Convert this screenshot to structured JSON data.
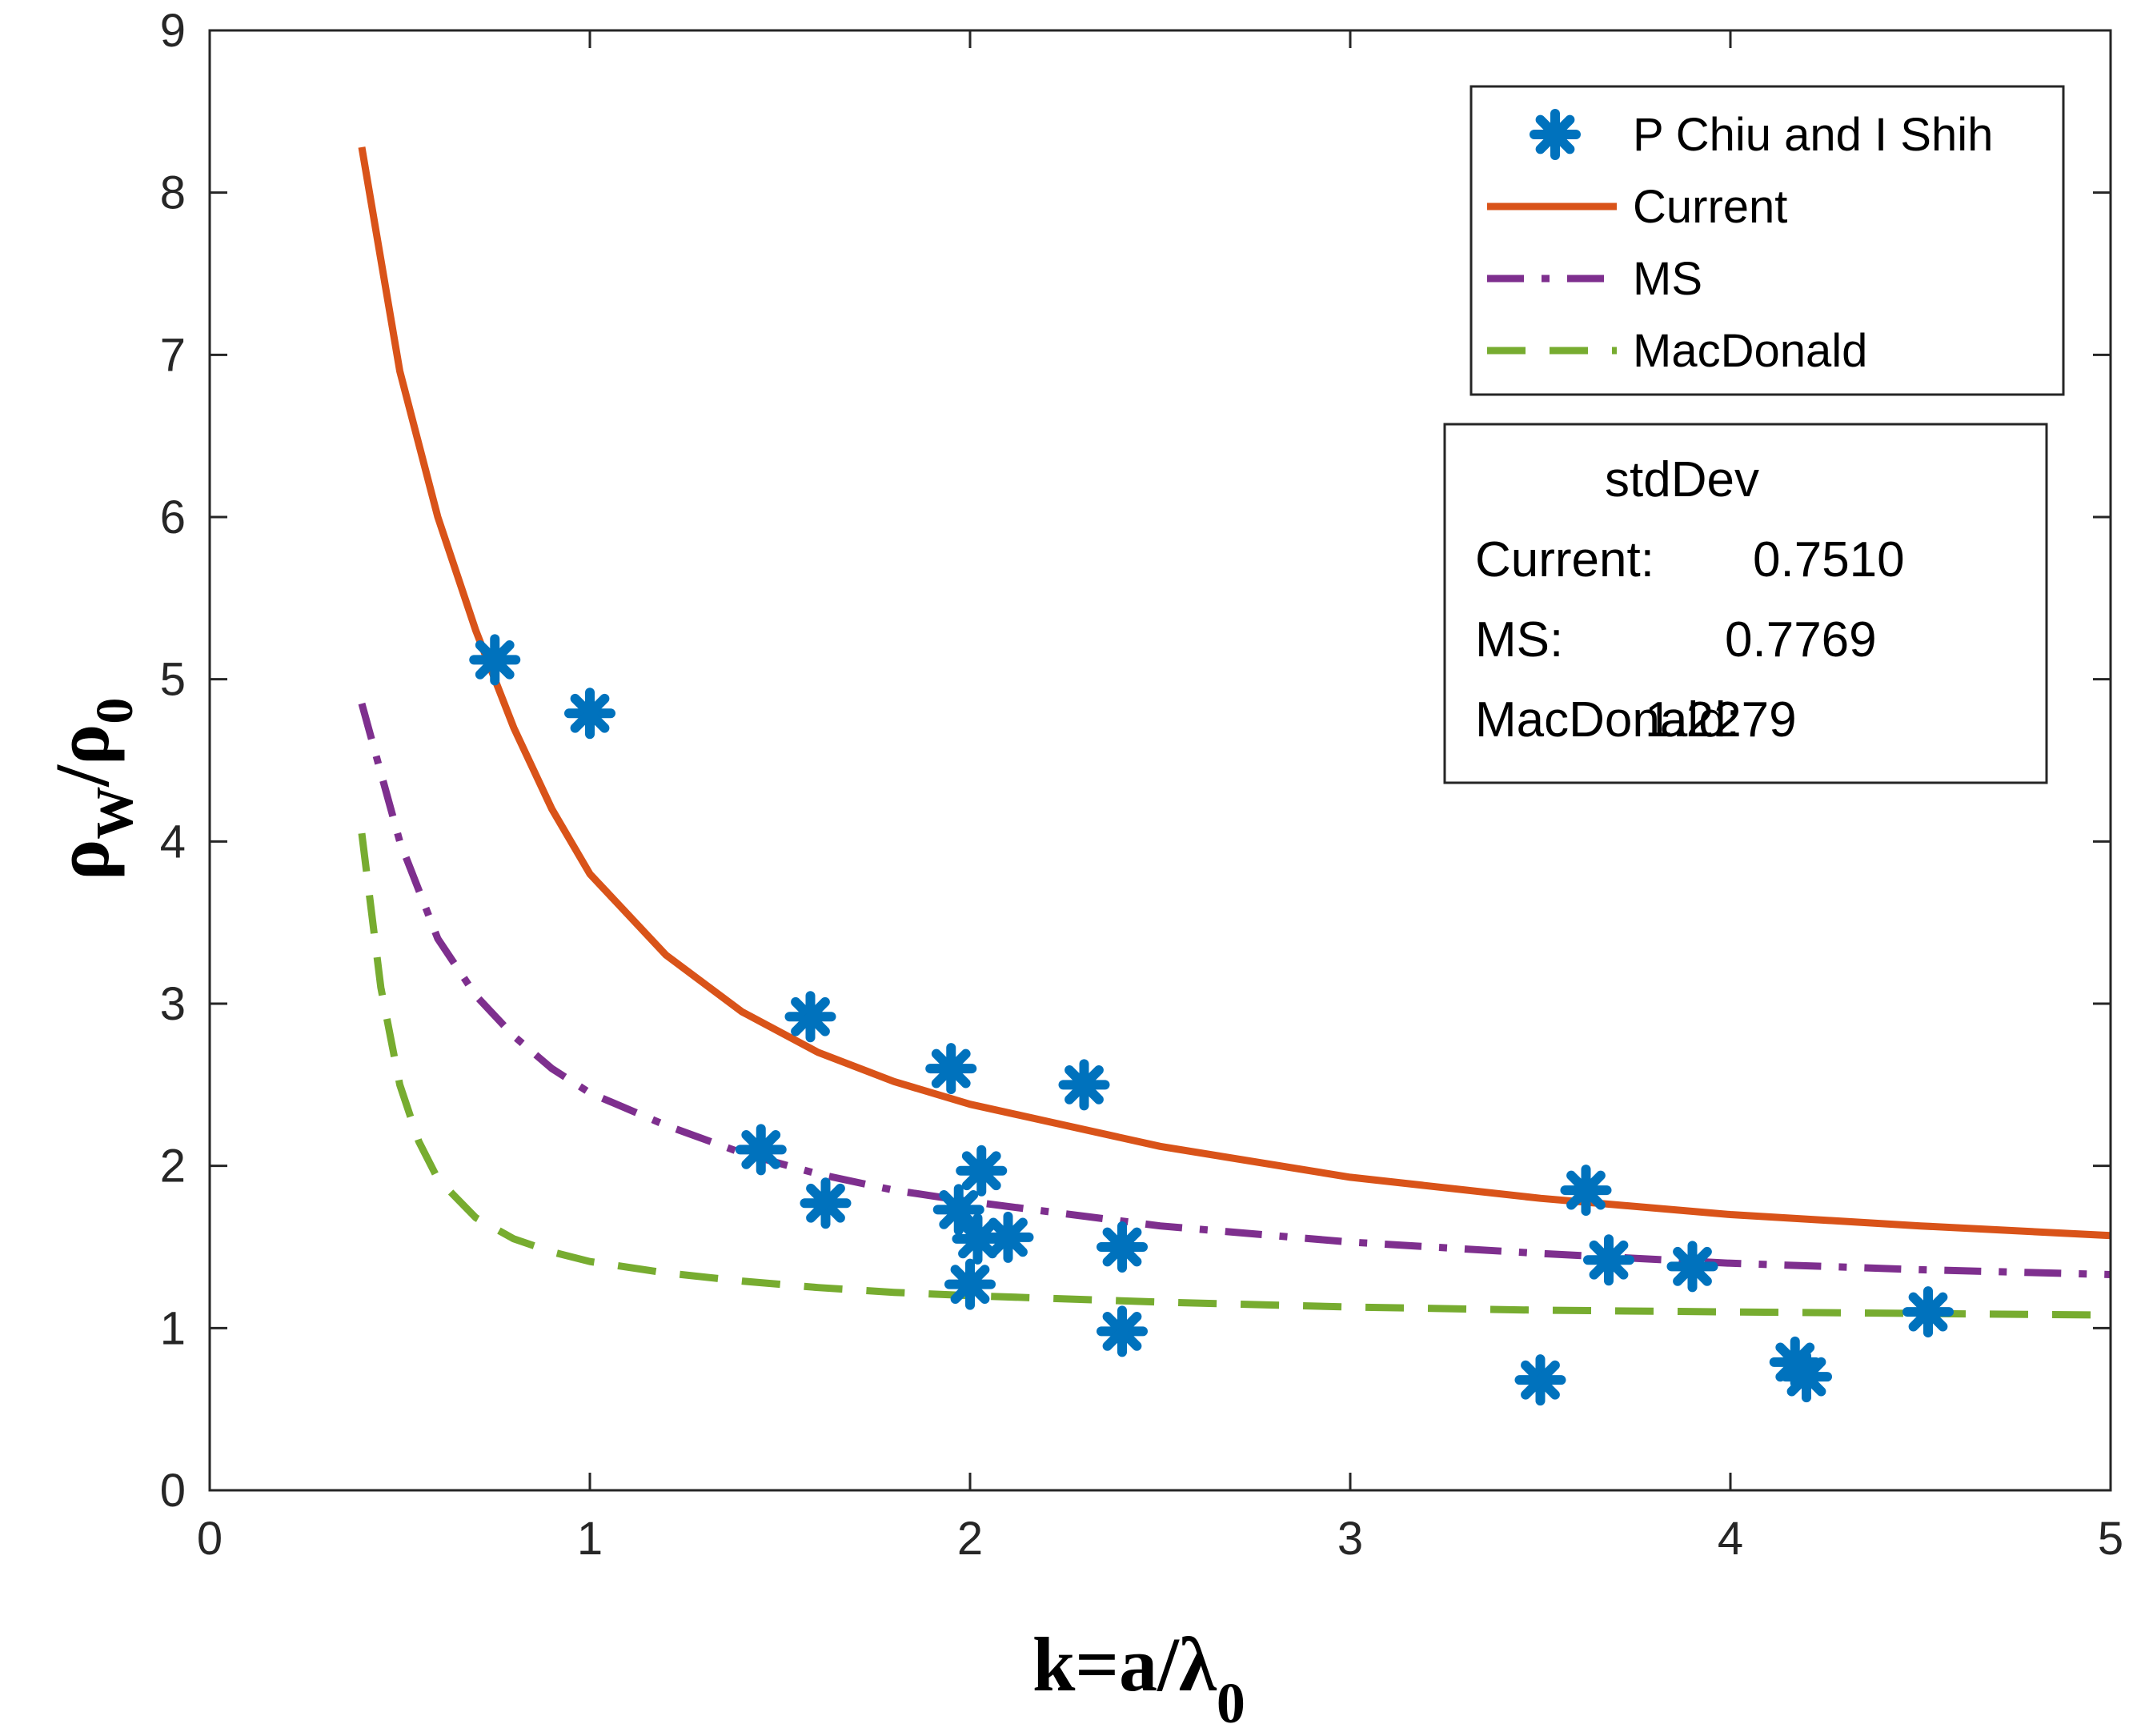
{
  "chart_data": {
    "type": "scatter",
    "xlabel": "k=a/λ0",
    "xlabel_main": "k=a/λ",
    "xlabel_sub": "0",
    "ylabel": "ρW/ρ0",
    "xlim": [
      0,
      5
    ],
    "ylim": [
      0,
      9
    ],
    "x_ticks": [
      "0",
      "1",
      "2",
      "3",
      "4",
      "5"
    ],
    "y_ticks": [
      "0",
      "1",
      "2",
      "3",
      "4",
      "5",
      "6",
      "7",
      "8",
      "9"
    ],
    "grid": false,
    "legend_position": "top-right",
    "series": [
      {
        "name": "P Chiu and I Shih",
        "kind": "scatter",
        "marker": "asterisk",
        "color": "#0072BD",
        "points": [
          [
            0.75,
            5.12
          ],
          [
            1.0,
            4.79
          ],
          [
            1.45,
            2.1
          ],
          [
            1.58,
            2.92
          ],
          [
            1.62,
            1.77
          ],
          [
            1.95,
            2.6
          ],
          [
            1.97,
            1.73
          ],
          [
            2.0,
            1.27
          ],
          [
            2.02,
            1.55
          ],
          [
            2.03,
            1.97
          ],
          [
            2.1,
            1.56
          ],
          [
            2.3,
            2.5
          ],
          [
            2.4,
            1.5
          ],
          [
            2.4,
            0.98
          ],
          [
            3.5,
            0.68
          ],
          [
            3.62,
            1.85
          ],
          [
            3.68,
            1.42
          ],
          [
            3.9,
            1.38
          ],
          [
            4.17,
            0.79
          ],
          [
            4.2,
            0.7
          ],
          [
            4.52,
            1.1
          ]
        ]
      },
      {
        "name": "Current",
        "kind": "line",
        "dash": "solid",
        "color": "#D95319",
        "x": [
          0.4,
          0.5,
          0.6,
          0.7,
          0.8,
          0.9,
          1.0,
          1.2,
          1.4,
          1.6,
          1.8,
          2.0,
          2.5,
          3.0,
          3.5,
          4.0,
          4.5,
          5.0
        ],
        "values": [
          8.28,
          6.9,
          6.0,
          5.3,
          4.7,
          4.2,
          3.8,
          3.3,
          2.95,
          2.7,
          2.52,
          2.38,
          2.12,
          1.93,
          1.8,
          1.7,
          1.63,
          1.57
        ]
      },
      {
        "name": "MS",
        "kind": "line",
        "dash": "dashdot",
        "color": "#7E2F8E",
        "x": [
          0.4,
          0.5,
          0.6,
          0.7,
          0.8,
          0.9,
          1.0,
          1.2,
          1.4,
          1.6,
          1.8,
          2.0,
          2.5,
          3.0,
          3.5,
          4.0,
          4.5,
          5.0
        ],
        "values": [
          4.85,
          4.0,
          3.4,
          3.05,
          2.8,
          2.6,
          2.45,
          2.25,
          2.08,
          1.95,
          1.85,
          1.78,
          1.63,
          1.53,
          1.46,
          1.4,
          1.36,
          1.33
        ]
      },
      {
        "name": "MacDonald",
        "kind": "line",
        "dash": "dashed",
        "color": "#77AC30",
        "x": [
          0.4,
          0.45,
          0.5,
          0.55,
          0.6,
          0.7,
          0.8,
          0.9,
          1.0,
          1.2,
          1.4,
          1.6,
          1.8,
          2.0,
          2.5,
          3.0,
          3.5,
          4.0,
          4.5,
          5.0
        ],
        "values": [
          4.05,
          3.1,
          2.5,
          2.15,
          1.92,
          1.68,
          1.55,
          1.47,
          1.41,
          1.34,
          1.29,
          1.25,
          1.22,
          1.2,
          1.16,
          1.13,
          1.11,
          1.1,
          1.09,
          1.08
        ]
      }
    ],
    "stats_box": {
      "title": "stdDev",
      "rows": [
        {
          "label": "Current:",
          "value": "0.7510"
        },
        {
          "label": "MS:",
          "value": "0.7769"
        },
        {
          "label": "MacDonald:",
          "value": "1.2279"
        }
      ]
    }
  }
}
